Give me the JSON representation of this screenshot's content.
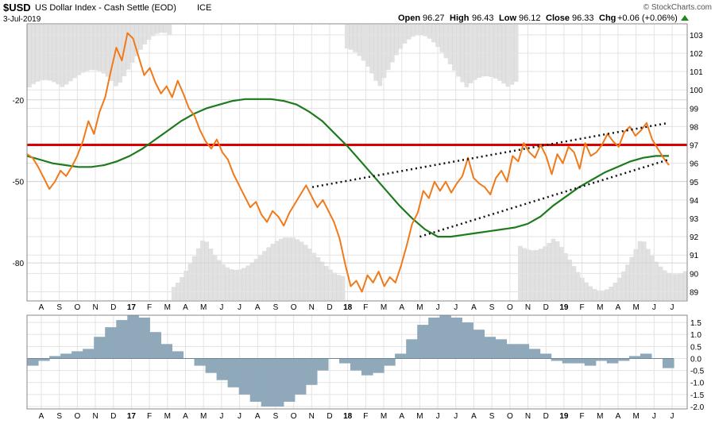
{
  "header": {
    "symbol": "$USD",
    "name": "US Dollar Index - Cash Settle (EOD)",
    "exchange": "ICE",
    "date": "3-Jul-2019",
    "open_label": "Open",
    "open": "96.27",
    "high_label": "High",
    "high": "96.43",
    "low_label": "Low",
    "low": "96.12",
    "close_label": "Close",
    "close": "96.33",
    "chg_label": "Chg",
    "chg": "+0.06 (+0.06%)",
    "watermark": "© StockCharts.com"
  },
  "colors": {
    "price": "#f07a1a",
    "ma": "#1e7a1e",
    "resistance": "#dd0000",
    "ma_flat": "#0a7a0a",
    "osc_bg": "#c8c8c8",
    "hist": "#8fa9ba",
    "grid": "#e3e3e3"
  },
  "chart_data": [
    {
      "type": "line",
      "x_tick_labels": [
        "A",
        "S",
        "O",
        "N",
        "D",
        "17",
        "F",
        "M",
        "A",
        "M",
        "J",
        "J",
        "A",
        "S",
        "O",
        "N",
        "D",
        "18",
        "F",
        "M",
        "A",
        "M",
        "J",
        "J",
        "A",
        "S",
        "O",
        "N",
        "D",
        "19",
        "F",
        "M",
        "A",
        "M",
        "J",
        "J"
      ],
      "right_axis": {
        "ylim": [
          88.5,
          103.6
        ],
        "ticks": [
          89,
          90,
          91,
          92,
          93,
          94,
          95,
          96,
          97,
          98,
          99,
          100,
          101,
          102,
          103
        ]
      },
      "left_axis": {
        "ylim": [
          -94,
          8
        ],
        "ticks": [
          -20,
          -50,
          -80
        ]
      },
      "resistance_level": 97.0,
      "series": [
        {
          "role": "price",
          "values": [
            96.5,
            96.3,
            95.8,
            95.2,
            94.6,
            95.0,
            95.6,
            95.3,
            95.8,
            96.4,
            97.2,
            98.3,
            97.6,
            98.8,
            99.6,
            101.0,
            102.3,
            101.6,
            103.1,
            102.8,
            101.8,
            100.8,
            101.2,
            100.4,
            99.8,
            100.2,
            99.6,
            100.5,
            99.8,
            99.0,
            98.6,
            97.8,
            97.2,
            96.8,
            97.3,
            96.6,
            96.2,
            95.4,
            94.8,
            94.2,
            93.6,
            93.9,
            93.2,
            92.8,
            93.4,
            93.1,
            92.6,
            93.3,
            93.8,
            94.3,
            94.8,
            94.2,
            93.6,
            94.0,
            93.4,
            92.8,
            91.9,
            90.5,
            89.3,
            89.6,
            89.0,
            89.9,
            89.5,
            90.1,
            89.3,
            89.8,
            89.5,
            90.4,
            91.5,
            92.7,
            93.3,
            94.5,
            94.1,
            95.0,
            94.5,
            95.0,
            94.4,
            94.9,
            95.3,
            96.3,
            95.2,
            94.9,
            94.7,
            94.3,
            95.2,
            95.6,
            95.0,
            96.4,
            96.1,
            97.1,
            96.6,
            96.3,
            97.0,
            96.4,
            95.4,
            96.5,
            96.0,
            96.9,
            96.6,
            95.7,
            97.1,
            96.4,
            96.6,
            97.0,
            97.6,
            97.2,
            96.9,
            97.7,
            98.0,
            97.5,
            97.8,
            98.2,
            97.3,
            96.8,
            96.3,
            95.9
          ]
        },
        {
          "role": "moving-average",
          "values": [
            96.4,
            96.2,
            96.0,
            95.9,
            95.8,
            95.8,
            95.9,
            96.1,
            96.4,
            96.8,
            97.3,
            97.8,
            98.3,
            98.7,
            99.0,
            99.2,
            99.4,
            99.5,
            99.5,
            99.5,
            99.4,
            99.2,
            98.8,
            98.3,
            97.6,
            96.9,
            96.1,
            95.3,
            94.5,
            93.7,
            93.0,
            92.4,
            92.0,
            92.0,
            92.1,
            92.2,
            92.3,
            92.4,
            92.5,
            92.7,
            93.1,
            93.7,
            94.2,
            94.7,
            95.1,
            95.5,
            95.8,
            96.1,
            96.3,
            96.4,
            96.4
          ]
        }
      ],
      "trendlines": [
        {
          "label": "channel-upper",
          "from": [
            "2017-10-31",
            94.7
          ],
          "to": [
            "2019-06-24",
            98.2
          ]
        },
        {
          "label": "channel-lower",
          "from": [
            "2018-04-30",
            92.0
          ],
          "to": [
            "2019-06-24",
            96.2
          ]
        }
      ]
    },
    {
      "type": "bar",
      "x_tick_labels": [
        "A",
        "S",
        "O",
        "N",
        "D",
        "17",
        "F",
        "M",
        "A",
        "M",
        "J",
        "J",
        "A",
        "S",
        "O",
        "N",
        "D",
        "18",
        "F",
        "M",
        "A",
        "M",
        "J",
        "J",
        "A",
        "S",
        "O",
        "N",
        "D",
        "19",
        "F",
        "M",
        "A",
        "M",
        "J",
        "J"
      ],
      "ylim": [
        -2.1,
        1.8
      ],
      "y_ticks": [
        1.5,
        1.0,
        0.5,
        0.0,
        -0.5,
        -1.0,
        -1.5,
        -2.0
      ],
      "y_tick_labels": [
        "1.5",
        "1.0",
        "0.5",
        "0.0",
        "-0.5",
        "-1.0",
        "-1.5",
        "-2.0"
      ],
      "values": [
        -0.3,
        -0.1,
        0.1,
        0.2,
        0.3,
        0.4,
        0.9,
        1.3,
        1.6,
        1.8,
        1.7,
        1.1,
        0.6,
        0.3,
        0.0,
        -0.3,
        -0.6,
        -0.9,
        -1.2,
        -1.5,
        -1.8,
        -2.0,
        -2.0,
        -1.8,
        -1.5,
        -1.1,
        -0.5,
        0.0,
        -0.2,
        -0.5,
        -0.7,
        -0.6,
        -0.3,
        0.2,
        0.8,
        1.4,
        1.7,
        1.8,
        1.7,
        1.5,
        1.2,
        0.9,
        0.8,
        0.6,
        0.6,
        0.4,
        0.2,
        -0.1,
        -0.2,
        -0.2,
        -0.3,
        -0.1,
        -0.2,
        -0.1,
        0.1,
        0.2,
        0.0,
        -0.4
      ]
    }
  ]
}
